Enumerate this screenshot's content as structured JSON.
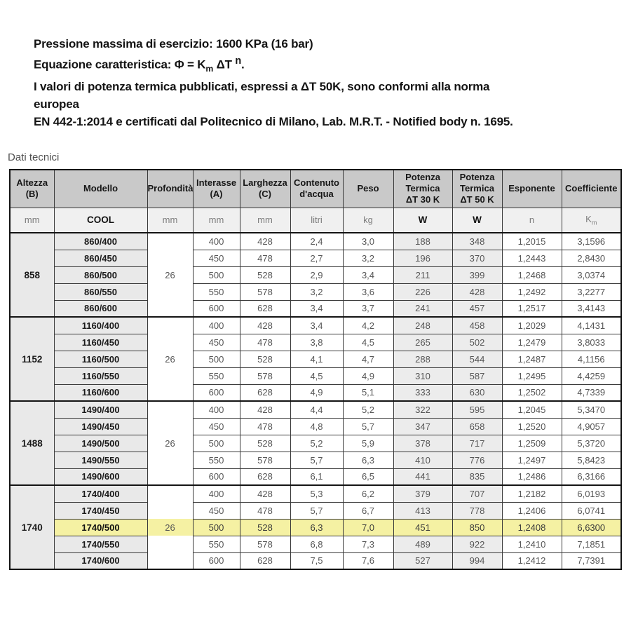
{
  "intro": {
    "line1": "Pressione massima di esercizio: 1600 KPa (16 bar)",
    "equation": {
      "prefix": "Equazione caratteristica: Φ = K",
      "sub": "m",
      "mid": " ΔT ",
      "sup": "n",
      "suffix": "."
    },
    "line3": "I valori di potenza termica pubblicati, espressi a ΔT 50K, sono conformi alla norma europea",
    "line4": "EN 442-1:2014 e certificati dal Politecnico di Milano, Lab. M.R.T. - Notified body n. 1695."
  },
  "section_title": "Dati tecnici",
  "colors": {
    "header_bg": "#c9c9c9",
    "unit_row_bg": "#f0f0f0",
    "model_cell_bg": "#e9e9e9",
    "potenza_cell_bg": "#ececec",
    "highlight_row_bg": "#f5f1a3"
  },
  "table": {
    "columns": [
      {
        "label": "Altezza\n(B)",
        "unit": "mm"
      },
      {
        "label": "Modello",
        "unit": "COOL"
      },
      {
        "label": "Profondità",
        "unit": "mm"
      },
      {
        "label": "Interasse\n(A)",
        "unit": "mm"
      },
      {
        "label": "Larghezza\n(C)",
        "unit": "mm"
      },
      {
        "label": "Contenuto\nd'acqua",
        "unit": "litri"
      },
      {
        "label": "Peso",
        "unit": "kg"
      },
      {
        "label": "Potenza\nTermica\nΔT 30 K",
        "unit": "W"
      },
      {
        "label": "Potenza\nTermica\nΔT 50 K",
        "unit": "W"
      },
      {
        "label": "Esponente",
        "unit": "n"
      },
      {
        "label": "Coefficiente",
        "unit_base": "K",
        "unit_sub": "m"
      }
    ],
    "groups": [
      {
        "altezza": "858",
        "profondita": "26",
        "rows": [
          {
            "modello": "860/400",
            "interasse": "400",
            "larghezza": "428",
            "contenuto": "2,4",
            "peso": "3,0",
            "pot30": "188",
            "pot50": "348",
            "esponente": "1,2015",
            "coefficiente": "3,1596",
            "highlight": false
          },
          {
            "modello": "860/450",
            "interasse": "450",
            "larghezza": "478",
            "contenuto": "2,7",
            "peso": "3,2",
            "pot30": "196",
            "pot50": "370",
            "esponente": "1,2443",
            "coefficiente": "2,8430",
            "highlight": false
          },
          {
            "modello": "860/500",
            "interasse": "500",
            "larghezza": "528",
            "contenuto": "2,9",
            "peso": "3,4",
            "pot30": "211",
            "pot50": "399",
            "esponente": "1,2468",
            "coefficiente": "3,0374",
            "highlight": false
          },
          {
            "modello": "860/550",
            "interasse": "550",
            "larghezza": "578",
            "contenuto": "3,2",
            "peso": "3,6",
            "pot30": "226",
            "pot50": "428",
            "esponente": "1,2492",
            "coefficiente": "3,2277",
            "highlight": false
          },
          {
            "modello": "860/600",
            "interasse": "600",
            "larghezza": "628",
            "contenuto": "3,4",
            "peso": "3,7",
            "pot30": "241",
            "pot50": "457",
            "esponente": "1,2517",
            "coefficiente": "3,4143",
            "highlight": false
          }
        ]
      },
      {
        "altezza": "1152",
        "profondita": "26",
        "rows": [
          {
            "modello": "1160/400",
            "interasse": "400",
            "larghezza": "428",
            "contenuto": "3,4",
            "peso": "4,2",
            "pot30": "248",
            "pot50": "458",
            "esponente": "1,2029",
            "coefficiente": "4,1431",
            "highlight": false
          },
          {
            "modello": "1160/450",
            "interasse": "450",
            "larghezza": "478",
            "contenuto": "3,8",
            "peso": "4,5",
            "pot30": "265",
            "pot50": "502",
            "esponente": "1,2479",
            "coefficiente": "3,8033",
            "highlight": false
          },
          {
            "modello": "1160/500",
            "interasse": "500",
            "larghezza": "528",
            "contenuto": "4,1",
            "peso": "4,7",
            "pot30": "288",
            "pot50": "544",
            "esponente": "1,2487",
            "coefficiente": "4,1156",
            "highlight": false
          },
          {
            "modello": "1160/550",
            "interasse": "550",
            "larghezza": "578",
            "contenuto": "4,5",
            "peso": "4,9",
            "pot30": "310",
            "pot50": "587",
            "esponente": "1,2495",
            "coefficiente": "4,4259",
            "highlight": false
          },
          {
            "modello": "1160/600",
            "interasse": "600",
            "larghezza": "628",
            "contenuto": "4,9",
            "peso": "5,1",
            "pot30": "333",
            "pot50": "630",
            "esponente": "1,2502",
            "coefficiente": "4,7339",
            "highlight": false
          }
        ]
      },
      {
        "altezza": "1488",
        "profondita": "26",
        "rows": [
          {
            "modello": "1490/400",
            "interasse": "400",
            "larghezza": "428",
            "contenuto": "4,4",
            "peso": "5,2",
            "pot30": "322",
            "pot50": "595",
            "esponente": "1,2045",
            "coefficiente": "5,3470",
            "highlight": false
          },
          {
            "modello": "1490/450",
            "interasse": "450",
            "larghezza": "478",
            "contenuto": "4,8",
            "peso": "5,7",
            "pot30": "347",
            "pot50": "658",
            "esponente": "1,2520",
            "coefficiente": "4,9057",
            "highlight": false
          },
          {
            "modello": "1490/500",
            "interasse": "500",
            "larghezza": "528",
            "contenuto": "5,2",
            "peso": "5,9",
            "pot30": "378",
            "pot50": "717",
            "esponente": "1,2509",
            "coefficiente": "5,3720",
            "highlight": false
          },
          {
            "modello": "1490/550",
            "interasse": "550",
            "larghezza": "578",
            "contenuto": "5,7",
            "peso": "6,3",
            "pot30": "410",
            "pot50": "776",
            "esponente": "1,2497",
            "coefficiente": "5,8423",
            "highlight": false
          },
          {
            "modello": "1490/600",
            "interasse": "600",
            "larghezza": "628",
            "contenuto": "6,1",
            "peso": "6,5",
            "pot30": "441",
            "pot50": "835",
            "esponente": "1,2486",
            "coefficiente": "6,3166",
            "highlight": false
          }
        ]
      },
      {
        "altezza": "1740",
        "profondita": "26",
        "rows": [
          {
            "modello": "1740/400",
            "interasse": "400",
            "larghezza": "428",
            "contenuto": "5,3",
            "peso": "6,2",
            "pot30": "379",
            "pot50": "707",
            "esponente": "1,2182",
            "coefficiente": "6,0193",
            "highlight": false
          },
          {
            "modello": "1740/450",
            "interasse": "450",
            "larghezza": "478",
            "contenuto": "5,7",
            "peso": "6,7",
            "pot30": "413",
            "pot50": "778",
            "esponente": "1,2406",
            "coefficiente": "6,0741",
            "highlight": false
          },
          {
            "modello": "1740/500",
            "interasse": "500",
            "larghezza": "528",
            "contenuto": "6,3",
            "peso": "7,0",
            "pot30": "451",
            "pot50": "850",
            "esponente": "1,2408",
            "coefficiente": "6,6300",
            "highlight": true
          },
          {
            "modello": "1740/550",
            "interasse": "550",
            "larghezza": "578",
            "contenuto": "6,8",
            "peso": "7,3",
            "pot30": "489",
            "pot50": "922",
            "esponente": "1,2410",
            "coefficiente": "7,1851",
            "highlight": false
          },
          {
            "modello": "1740/600",
            "interasse": "600",
            "larghezza": "628",
            "contenuto": "7,5",
            "peso": "7,6",
            "pot30": "527",
            "pot50": "994",
            "esponente": "1,2412",
            "coefficiente": "7,7391",
            "highlight": false
          }
        ]
      }
    ]
  }
}
